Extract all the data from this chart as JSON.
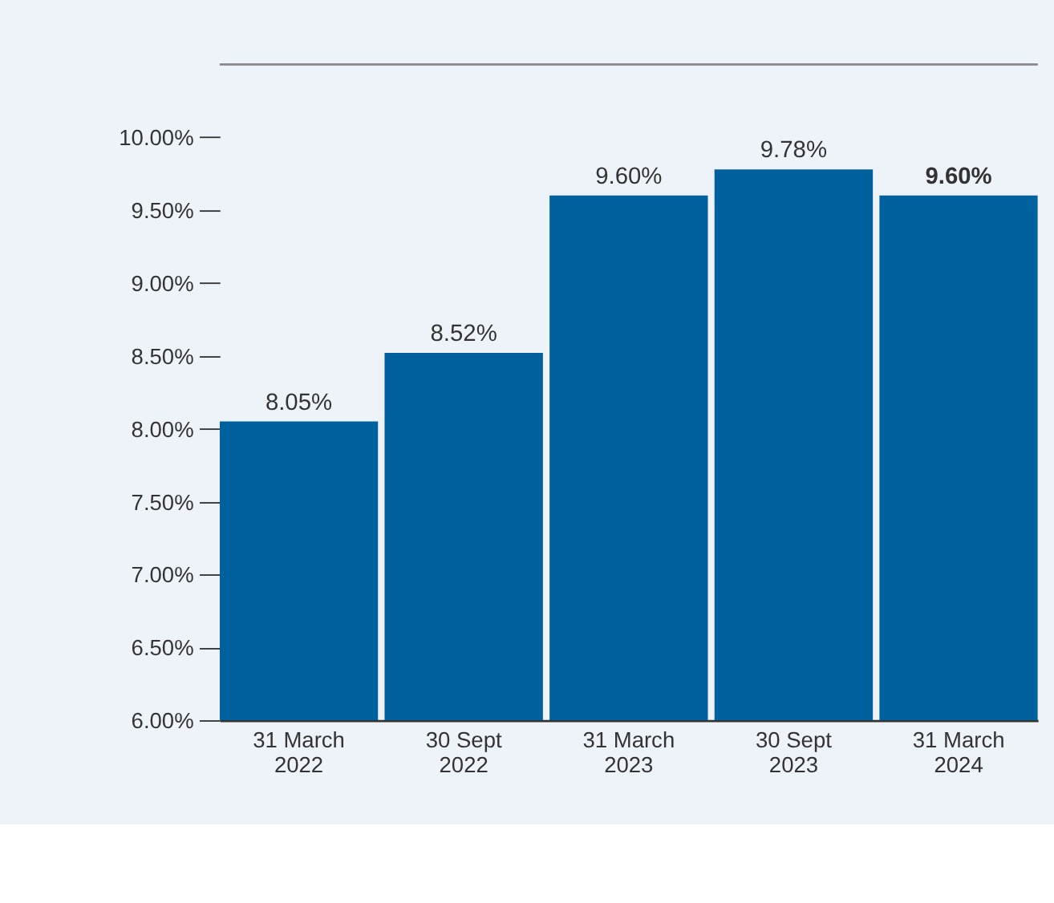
{
  "chart_data": {
    "type": "bar",
    "categories": [
      "31 March 2022",
      "30 Sept 2022",
      "31 March 2023",
      "30 Sept 2023",
      "31 March 2024"
    ],
    "values": [
      8.05,
      8.52,
      9.6,
      9.78,
      9.6
    ],
    "value_labels": [
      "8.05%",
      "8.52%",
      "9.60%",
      "9.78%",
      "9.60%"
    ],
    "color": "#00619e",
    "ylim": [
      6,
      10.5
    ],
    "yticks": [
      {
        "value": 6,
        "label": "6.00%"
      },
      {
        "value": 6.5,
        "label": "6.50%"
      },
      {
        "value": 7,
        "label": "7.00%"
      },
      {
        "value": 7.5,
        "label": "7.50%"
      },
      {
        "value": 8,
        "label": "8.00%"
      },
      {
        "value": 8.5,
        "label": "8.50%"
      },
      {
        "value": 9,
        "label": "9.00%"
      },
      {
        "value": 9.5,
        "label": "9.50%"
      },
      {
        "value": 10,
        "label": "10.00%"
      }
    ],
    "grid": false
  }
}
